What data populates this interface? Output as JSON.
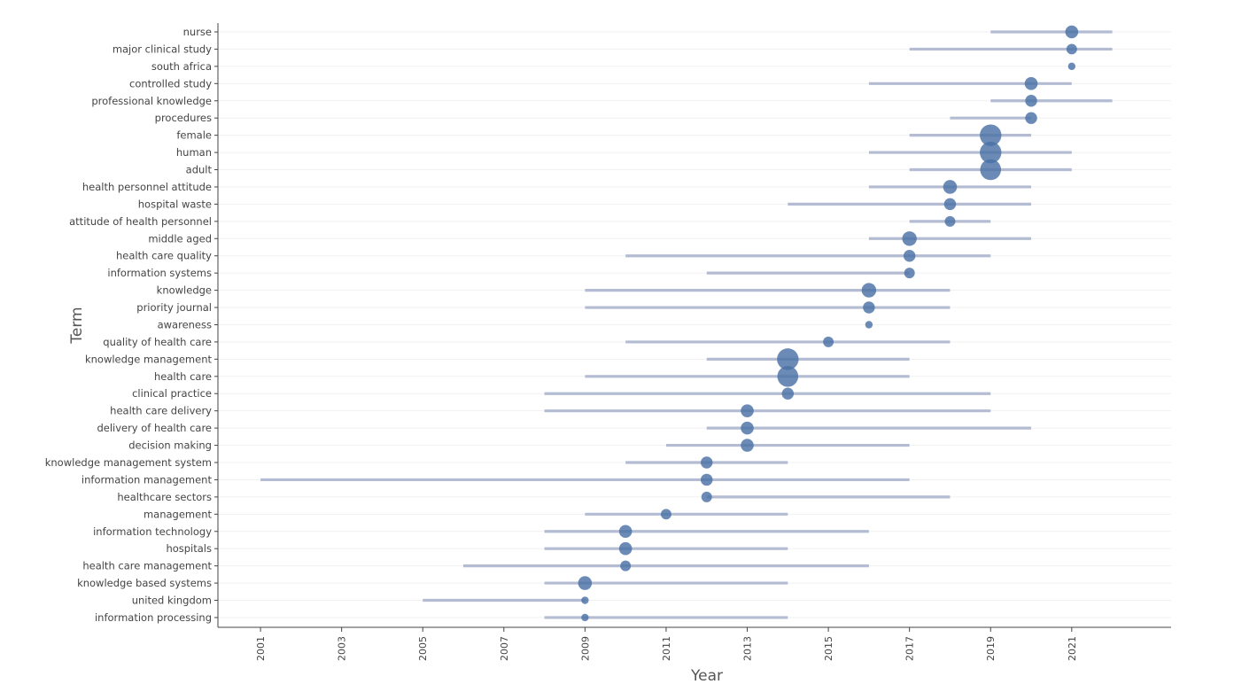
{
  "chart_data": {
    "type": "scatter",
    "subtype": "trend-topics",
    "xlabel": "Year",
    "ylabel": "Term",
    "xlim": [
      1999.95,
      2023.45
    ],
    "x_ticks": [
      "2001",
      "2003",
      "2005",
      "2007",
      "2009",
      "2011",
      "2013",
      "2015",
      "2017",
      "2019",
      "2021"
    ],
    "grid": "horizontal",
    "colors": {
      "range_bar": "#b3bcd3",
      "point": "#4a72a6",
      "grid": "#f1f1f1",
      "axis": "#444444"
    },
    "terms": [
      {
        "term": "nurse",
        "start": 2019,
        "median": 2021,
        "end": 2022,
        "freq": 5
      },
      {
        "term": "major clinical study",
        "start": 2017,
        "median": 2021,
        "end": 2022,
        "freq": 3
      },
      {
        "term": "south africa",
        "start": 2021,
        "median": 2021,
        "end": 2021,
        "freq": 2
      },
      {
        "term": "controlled study",
        "start": 2016,
        "median": 2020,
        "end": 2021,
        "freq": 5
      },
      {
        "term": "professional knowledge",
        "start": 2019,
        "median": 2020,
        "end": 2022,
        "freq": 4
      },
      {
        "term": "procedures",
        "start": 2018,
        "median": 2020,
        "end": 2020,
        "freq": 4
      },
      {
        "term": "female",
        "start": 2017,
        "median": 2019,
        "end": 2020,
        "freq": 22
      },
      {
        "term": "human",
        "start": 2016,
        "median": 2019,
        "end": 2021,
        "freq": 22
      },
      {
        "term": "adult",
        "start": 2017,
        "median": 2019,
        "end": 2021,
        "freq": 20
      },
      {
        "term": "health personnel attitude",
        "start": 2016,
        "median": 2018,
        "end": 2020,
        "freq": 6
      },
      {
        "term": "hospital waste",
        "start": 2014,
        "median": 2018,
        "end": 2020,
        "freq": 4
      },
      {
        "term": "attitude of health personnel",
        "start": 2017,
        "median": 2018,
        "end": 2019,
        "freq": 3
      },
      {
        "term": "middle aged",
        "start": 2016,
        "median": 2017,
        "end": 2020,
        "freq": 7
      },
      {
        "term": "health care quality",
        "start": 2010,
        "median": 2017,
        "end": 2019,
        "freq": 4
      },
      {
        "term": "information systems",
        "start": 2012,
        "median": 2017,
        "end": 2017,
        "freq": 3
      },
      {
        "term": "knowledge",
        "start": 2009,
        "median": 2016,
        "end": 2018,
        "freq": 7
      },
      {
        "term": "priority journal",
        "start": 2009,
        "median": 2016,
        "end": 2018,
        "freq": 4
      },
      {
        "term": "awareness",
        "start": 2016,
        "median": 2016,
        "end": 2016,
        "freq": 2
      },
      {
        "term": "quality of health care",
        "start": 2010,
        "median": 2015,
        "end": 2018,
        "freq": 3
      },
      {
        "term": "knowledge management",
        "start": 2012,
        "median": 2014,
        "end": 2017,
        "freq": 22
      },
      {
        "term": "health care",
        "start": 2009,
        "median": 2014,
        "end": 2017,
        "freq": 20
      },
      {
        "term": "clinical practice",
        "start": 2008,
        "median": 2014,
        "end": 2019,
        "freq": 4
      },
      {
        "term": "health care delivery",
        "start": 2008,
        "median": 2013,
        "end": 2019,
        "freq": 5
      },
      {
        "term": "delivery of health care",
        "start": 2012,
        "median": 2013,
        "end": 2020,
        "freq": 5
      },
      {
        "term": "decision making",
        "start": 2011,
        "median": 2013,
        "end": 2017,
        "freq": 5
      },
      {
        "term": "knowledge management system",
        "start": 2010,
        "median": 2012,
        "end": 2014,
        "freq": 4
      },
      {
        "term": "information management",
        "start": 2001,
        "median": 2012,
        "end": 2017,
        "freq": 4
      },
      {
        "term": "healthcare sectors",
        "start": 2012,
        "median": 2012,
        "end": 2018,
        "freq": 3
      },
      {
        "term": "management",
        "start": 2009,
        "median": 2011,
        "end": 2014,
        "freq": 3
      },
      {
        "term": "information technology",
        "start": 2008,
        "median": 2010,
        "end": 2016,
        "freq": 5
      },
      {
        "term": "hospitals",
        "start": 2008,
        "median": 2010,
        "end": 2014,
        "freq": 5
      },
      {
        "term": "health care management",
        "start": 2006,
        "median": 2010,
        "end": 2016,
        "freq": 3
      },
      {
        "term": "knowledge based systems",
        "start": 2008,
        "median": 2009,
        "end": 2014,
        "freq": 6
      },
      {
        "term": "united kingdom",
        "start": 2005,
        "median": 2009,
        "end": 2009,
        "freq": 2
      },
      {
        "term": "information processing",
        "start": 2008,
        "median": 2009,
        "end": 2014,
        "freq": 2
      }
    ]
  }
}
